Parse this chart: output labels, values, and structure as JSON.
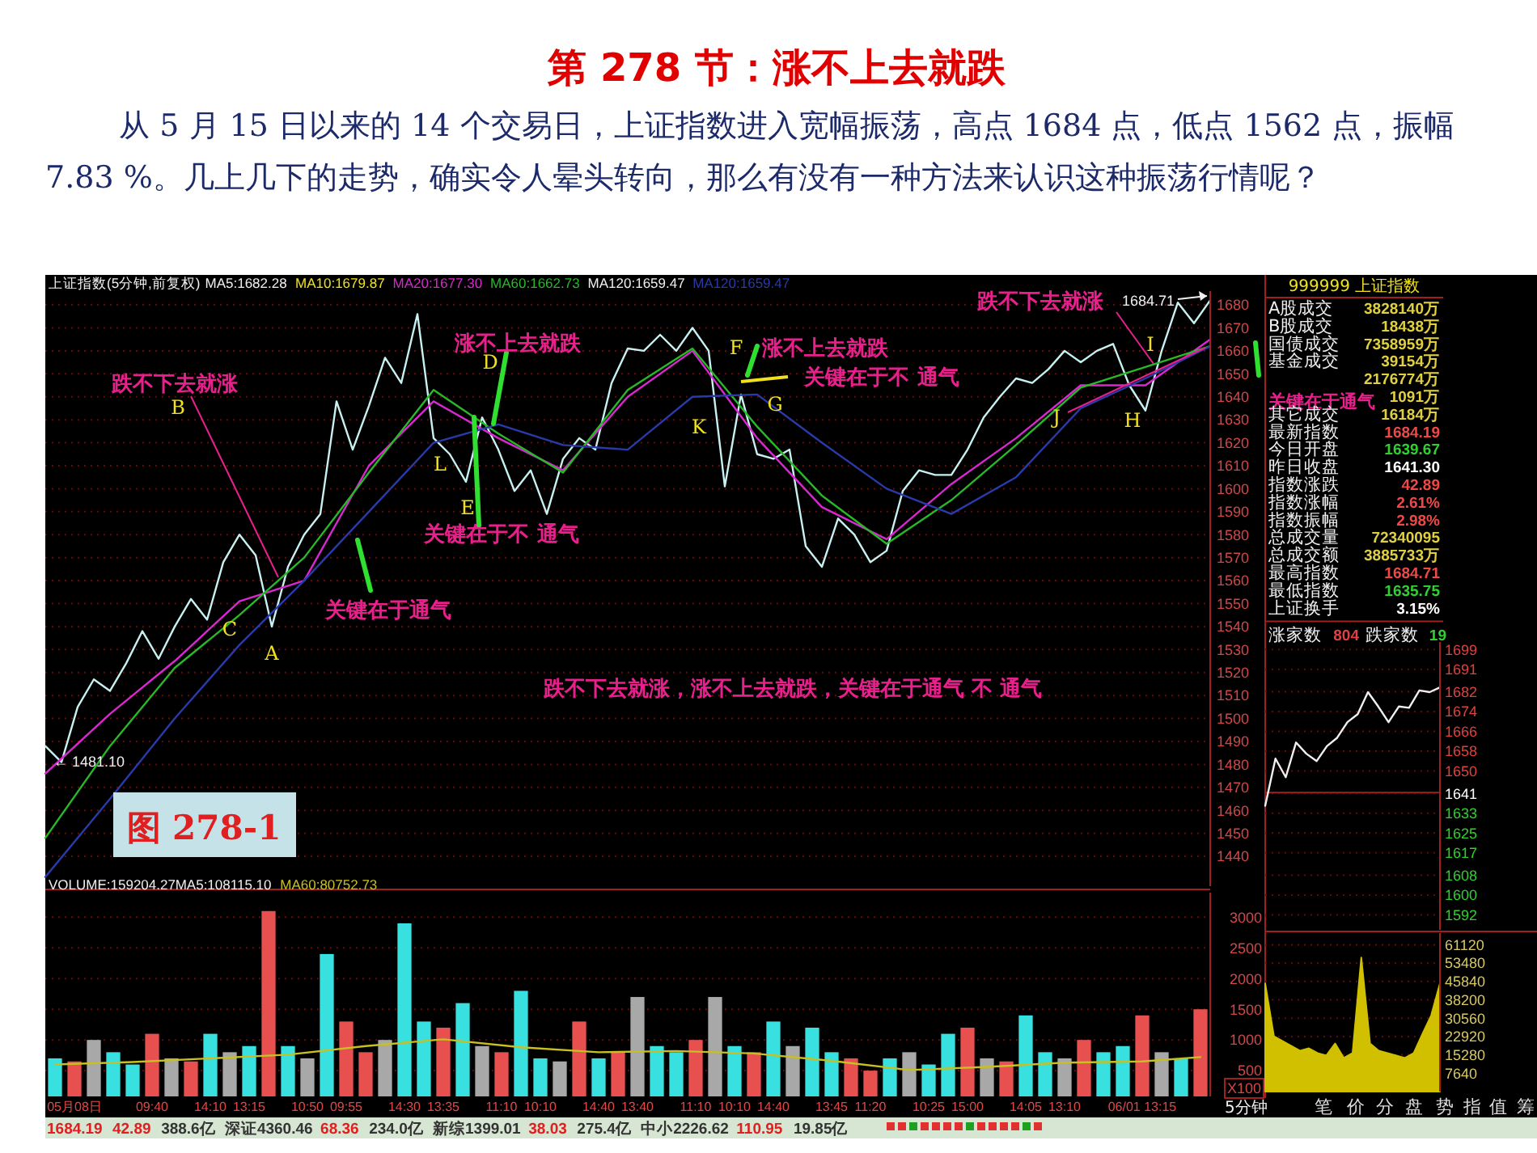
{
  "chart_data": [
    {
      "type": "line",
      "title": "第 278 节：涨不上去就跌",
      "subtitle": "从 5 月 15 日以来的 14 个交易日，上证指数进入宽幅振荡，高点 1684 点，低点 1562 点，振幅 7.83 %。几上几下的走势，确实令人晕头转向，那么有没有一种方法来认识这种振荡行情呢？",
      "categories": [
        null,
        null,
        null,
        null,
        null,
        null,
        null,
        null,
        null,
        null,
        null,
        null,
        null,
        null,
        null,
        null,
        null,
        null,
        null,
        null,
        null,
        null,
        null,
        null,
        null,
        null,
        null,
        null,
        null,
        null,
        null,
        null,
        null,
        null,
        null,
        null,
        null,
        null,
        null,
        null,
        null,
        null,
        null,
        null,
        null,
        null,
        null,
        null,
        null,
        null,
        null,
        null,
        null,
        null,
        null,
        null,
        null,
        null,
        null,
        null,
        null,
        null,
        null,
        null,
        null,
        null,
        null,
        null,
        null,
        null,
        null,
        null,
        null
      ],
      "ylim": [
        1427,
        1686
      ],
      "yticks": [
        1440,
        1450,
        1460,
        1470,
        1480,
        1490,
        1500,
        1510,
        1520,
        1530,
        1540,
        1550,
        1560,
        1570,
        1580,
        1590,
        1600,
        1610,
        1620,
        1630,
        1640,
        1650,
        1660,
        1670,
        1680
      ],
      "tick_labels": "y",
      "grid": "y",
      "legend": "top left",
      "series": [
        {
          "color": "#c8f0f0",
          "values": [
            1488,
            1481,
            1505,
            1517,
            1512,
            1524,
            1538,
            1526,
            1540,
            1552,
            1543,
            1568,
            1580,
            1571,
            1540,
            1566,
            1580,
            1589,
            1638,
            1617,
            1636,
            1657,
            1646,
            1676,
            1622,
            1615,
            1603,
            1631,
            1617,
            1599,
            1608,
            1589,
            1613,
            1622,
            1617,
            1646,
            1661,
            1660,
            1667,
            1660,
            1670,
            1660,
            1601,
            1641,
            1615,
            1613,
            1617,
            1575,
            1566,
            1587,
            1580,
            1568,
            1573,
            1599,
            1608,
            1606,
            1606,
            1617,
            1631,
            1640,
            1648,
            1646,
            1652,
            1660,
            1655,
            1660,
            1663,
            1645,
            1634,
            1660,
            1681,
            1672,
            1682
          ]
        },
        {
          "name": "MA20:1677.30",
          "color": "#d828d0",
          "values": [
            1476,
            null,
            null,
            null,
            1502,
            null,
            null,
            null,
            1525,
            null,
            null,
            null,
            1551,
            null,
            null,
            null,
            1560,
            null,
            null,
            null,
            1610,
            null,
            null,
            null,
            1638,
            null,
            null,
            null,
            1622,
            null,
            null,
            null,
            1608,
            null,
            null,
            null,
            1640,
            null,
            null,
            null,
            1660,
            null,
            null,
            null,
            1622,
            null,
            null,
            null,
            1592,
            null,
            null,
            null,
            1578,
            null,
            null,
            null,
            1602,
            null,
            null,
            null,
            1622,
            null,
            null,
            null,
            1645,
            null,
            null,
            null,
            1645,
            null,
            null,
            null,
            1665
          ]
        },
        {
          "name": "MA60:1662.73",
          "color": "#28b828",
          "values": [
            1448,
            null,
            null,
            null,
            1488,
            null,
            null,
            null,
            1522,
            null,
            null,
            null,
            1545,
            null,
            null,
            null,
            1570,
            null,
            null,
            null,
            1607,
            null,
            null,
            null,
            1643,
            null,
            null,
            null,
            1624,
            null,
            null,
            null,
            1607,
            null,
            null,
            null,
            1643,
            null,
            null,
            null,
            1661,
            null,
            null,
            null,
            1627,
            null,
            null,
            null,
            1597,
            null,
            null,
            null,
            1576,
            null,
            null,
            null,
            1595,
            null,
            null,
            null,
            1619,
            null,
            null,
            null,
            1644,
            null,
            null,
            null,
            1653,
            null,
            null,
            null,
            1662
          ]
        },
        {
          "name": "MA120:1659.47",
          "color": "#2a3aa8",
          "values": [
            1431,
            null,
            null,
            null,
            1465,
            null,
            null,
            null,
            1500,
            null,
            null,
            null,
            1532,
            null,
            null,
            null,
            1560,
            null,
            null,
            null,
            1590,
            null,
            null,
            null,
            1620,
            null,
            null,
            null,
            1628,
            null,
            null,
            null,
            1619,
            null,
            null,
            null,
            1617,
            null,
            null,
            null,
            1640,
            null,
            null,
            null,
            1641,
            null,
            null,
            null,
            1620,
            null,
            null,
            null,
            1600,
            null,
            null,
            null,
            1589,
            null,
            null,
            null,
            1605,
            null,
            null,
            null,
            1635,
            null,
            null,
            null,
            1648,
            null,
            null,
            null,
            1662
          ]
        }
      ],
      "annotations": [
        "上证指数(5分钟,前复权)",
        "MA5:1682.28",
        "MA10:1679.87",
        "MA120:1659.47",
        "跌不下去就涨，涨不上去就跌，关键在于通气 不 通气",
        "图 278-1",
        "关键在于通气",
        "跌不下去就涨",
        "B",
        "C",
        "A",
        "涨不上去就跌",
        "D",
        "L",
        "E",
        "关键在于不 通气",
        "关键在于通气",
        "K",
        "F",
        "涨不上去就跌",
        "G",
        "关键在于不 通气",
        "J",
        "跌不下去就涨",
        "I",
        "H",
        "← 1481.10",
        "1684.71"
      ]
    },
    {
      "type": "bar",
      "categories": [
        null,
        "05月08日",
        null,
        null,
        null,
        "09:40",
        null,
        null,
        "14:10",
        null,
        "13:15",
        null,
        null,
        "10:50",
        null,
        "09:55",
        null,
        null,
        "14:30",
        null,
        "13:35",
        null,
        null,
        "11:10",
        null,
        "10:10",
        null,
        null,
        "14:40",
        null,
        "13:40",
        null,
        null,
        "11:10",
        null,
        "10:10",
        null,
        "14:40",
        null,
        null,
        "13:45",
        null,
        "11:20",
        null,
        null,
        "10:25",
        null,
        "15:00",
        null,
        null,
        "14:05",
        null,
        "13:10",
        null,
        null,
        null,
        "06/01 13:15",
        null,
        null,
        null
      ],
      "ylim": [
        80,
        3400
      ],
      "yticks": [
        500,
        1000,
        1500,
        2000,
        2500,
        3000
      ],
      "ylabel": "X100",
      "grid": "y",
      "legend": "top left",
      "series": [
        {
          "type": "bar",
          "values": [
            700,
            650,
            1000,
            800,
            600,
            1100,
            700,
            650,
            1100,
            800,
            900,
            3100,
            900,
            700,
            2400,
            1300,
            800,
            1000,
            2900,
            1300,
            1200,
            1600,
            900,
            800,
            1800,
            700,
            650,
            1300,
            700,
            800,
            1700,
            900,
            800,
            1000,
            1700,
            900,
            800,
            1300,
            900,
            1200,
            800,
            700,
            500,
            700,
            800,
            600,
            1100,
            1200,
            700,
            650,
            1400,
            800,
            700,
            1000,
            800,
            900,
            1400,
            800,
            700,
            1500
          ],
          "colors": [
            "#38e0e0",
            "#e85050",
            "#a8a8a8",
            "#38e0e0",
            "#38e0e0",
            "#e85050",
            "#a8a8a8",
            "#e85050",
            "#38e0e0",
            "#a8a8a8",
            "#38e0e0",
            "#e85050",
            "#38e0e0",
            "#a8a8a8",
            "#38e0e0",
            "#e85050",
            "#e85050",
            "#a8a8a8",
            "#38e0e0",
            "#38e0e0",
            "#e85050",
            "#38e0e0",
            "#a8a8a8",
            "#e85050",
            "#38e0e0",
            "#38e0e0",
            "#a8a8a8",
            "#e85050",
            "#38e0e0",
            "#e85050",
            "#a8a8a8",
            "#38e0e0",
            "#38e0e0",
            "#e85050",
            "#a8a8a8",
            "#38e0e0",
            "#e85050",
            "#38e0e0",
            "#a8a8a8",
            "#38e0e0",
            "#38e0e0",
            "#e85050",
            "#e85050",
            "#38e0e0",
            "#a8a8a8",
            "#38e0e0",
            "#38e0e0",
            "#e85050",
            "#a8a8a8",
            "#e85050",
            "#38e0e0",
            "#38e0e0",
            "#a8a8a8",
            "#e85050",
            "#38e0e0",
            "#38e0e0",
            "#e85050",
            "#a8a8a8",
            "#38e0e0",
            "#e85050"
          ]
        },
        {
          "type": "line",
          "name": "MA60:80752.73",
          "color": "#c8c020",
          "values": [
            600,
            null,
            null,
            null,
            640,
            null,
            null,
            null,
            700,
            null,
            null,
            null,
            760,
            null,
            null,
            null,
            900,
            null,
            null,
            null,
            1010,
            null,
            null,
            null,
            880,
            null,
            null,
            null,
            800,
            null,
            null,
            null,
            820,
            null,
            null,
            null,
            780,
            null,
            null,
            null,
            660,
            null,
            null,
            null,
            510,
            null,
            null,
            null,
            560,
            null,
            null,
            null,
            630,
            null,
            null,
            null,
            650,
            null,
            null,
            720
          ]
        }
      ],
      "annotations": [
        "VOLUME:159204.27",
        "MA5:108115.10",
        "5分钟",
        "笔",
        "价",
        "分",
        "盘",
        "势",
        "指",
        "值",
        "筹",
        "1684.19",
        "42.89",
        "388.6亿",
        "深证4360.46",
        "68.36",
        "234.0亿",
        "新综1399.01",
        "38.03",
        "275.4亿",
        "中小2226.62",
        "110.95",
        "19.85亿"
      ]
    },
    {
      "type": "other",
      "title": "999999 上证指数",
      "categories": [
        "A股成交",
        "B股成交",
        "国债成交",
        "基金成交",
        null,
        null,
        "其它成交",
        "最新指数",
        "今日开盘",
        "昨日收盘",
        "指数涨跌",
        "指数涨幅",
        "指数振幅",
        "总成交量",
        "总成交额",
        "最高指数",
        "最低指数",
        "上证换手"
      ],
      "value_labels": [
        "3828140万",
        "18438万",
        "7358959万",
        "39154万",
        "2176774万",
        "1091万",
        "16184万",
        "1684.19",
        "1639.67",
        "1641.30",
        "42.89",
        "2.61%",
        "2.98%",
        "72340095",
        "3885733万",
        "1684.71",
        "1635.75",
        "3.15%"
      ],
      "colors": [
        "#e0d040",
        "#e0d040",
        "#e0d040",
        "#e0d040",
        "#e0d040",
        "#e0d040",
        "#e0d040",
        "#f04848",
        "#30d030",
        "#ffffff",
        "#f04848",
        "#f04848",
        "#f04848",
        "#e0d040",
        "#e0d040",
        "#f04848",
        "#30d030",
        "#ffffff"
      ],
      "annotations": [
        "涨家数",
        "804",
        "跌家数",
        "19"
      ]
    },
    {
      "type": "line",
      "categories": [
        null,
        null,
        null,
        null,
        null,
        null,
        null,
        null,
        null,
        null,
        null,
        null,
        null,
        null,
        null,
        null,
        null,
        null
      ],
      "values": [
        1636,
        1655,
        1647.5,
        1661.5,
        1657,
        1654,
        1660,
        1663.4,
        1669.7,
        1672.9,
        1681.8,
        1676,
        1669.7,
        1676,
        1675.5,
        1682.5,
        1681.8,
        1683.7
      ],
      "color": "#f0f0f0",
      "ylim": [
        1586,
        1702
      ],
      "yticks": [
        1699,
        1691,
        1682,
        1674,
        1666,
        1658,
        1650,
        1641,
        1633,
        1625,
        1617,
        1608,
        1600,
        1592
      ],
      "tick_labels": "y",
      "grid": "y",
      "ref_lines": [
        {
          "axis": "y",
          "value": 1641.3
        }
      ]
    },
    {
      "type": "area",
      "categories": [
        null,
        null,
        null,
        null,
        null,
        null,
        null,
        null,
        null,
        null,
        null,
        null,
        null,
        null,
        null,
        null,
        null,
        null,
        null,
        null,
        null
      ],
      "values": [
        45000,
        23000,
        21000,
        19000,
        17000,
        18000,
        16000,
        15000,
        20000,
        14000,
        16000,
        55800,
        20000,
        17000,
        16000,
        15000,
        14000,
        16000,
        24000,
        31700,
        45000
      ],
      "color": "#d0c000",
      "ylim": [
        0,
        66000
      ],
      "yticks": [
        7640,
        15280,
        22920,
        30560,
        38200,
        45840,
        53480,
        61120
      ],
      "tick_labels": "y",
      "grid": "y"
    }
  ]
}
